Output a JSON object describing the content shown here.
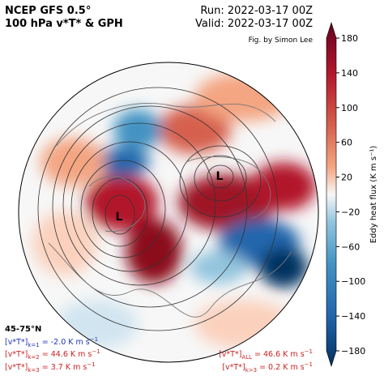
{
  "header": {
    "title": "NCEP GFS 0.5°",
    "subtitle": "100 hPa v*T* & GPH",
    "run": "Run: 2022-03-17 00Z",
    "valid": "Valid: 2022-03-17 00Z",
    "credit": "Fig. by Simon Lee"
  },
  "map": {
    "lows": [
      "L",
      "L"
    ]
  },
  "colorbar": {
    "label": "Eddy heat flux (K m s⁻¹)",
    "lim": [
      -180,
      180
    ],
    "ticks": [
      180,
      140,
      100,
      60,
      20,
      {
        "value": -20,
        "label": "−20"
      },
      {
        "value": -60,
        "label": "−60"
      },
      {
        "value": -100,
        "label": "−100"
      },
      {
        "value": -140,
        "label": "−140"
      },
      {
        "value": -180,
        "label": "−180"
      }
    ]
  },
  "stats": {
    "band": "45-75°N",
    "lines": [
      {
        "prefix": "[v*T*]",
        "sub": "k=1",
        "text": " = -2.0 K m s",
        "sup": "−1",
        "color": "#2233bb"
      },
      {
        "prefix": "[v*T*]",
        "sub": "k=2",
        "text": " = 44.6 K m s",
        "sup": "−1",
        "color": "#cc2222"
      },
      {
        "prefix": "[v*T*]",
        "sub": "k=3",
        "text": " = 3.7 K m s",
        "sup": "−1",
        "color": "#cc2222"
      },
      {
        "prefix": "[v*T*]",
        "sub": "ALL",
        "text": " = 46.6 K m s",
        "sup": "−1",
        "color": "#cc2222"
      },
      {
        "prefix": "[v*T*]",
        "sub": "k>3",
        "text": " = 0.2 K m s",
        "sup": "−1",
        "color": "#cc2222"
      }
    ]
  }
}
